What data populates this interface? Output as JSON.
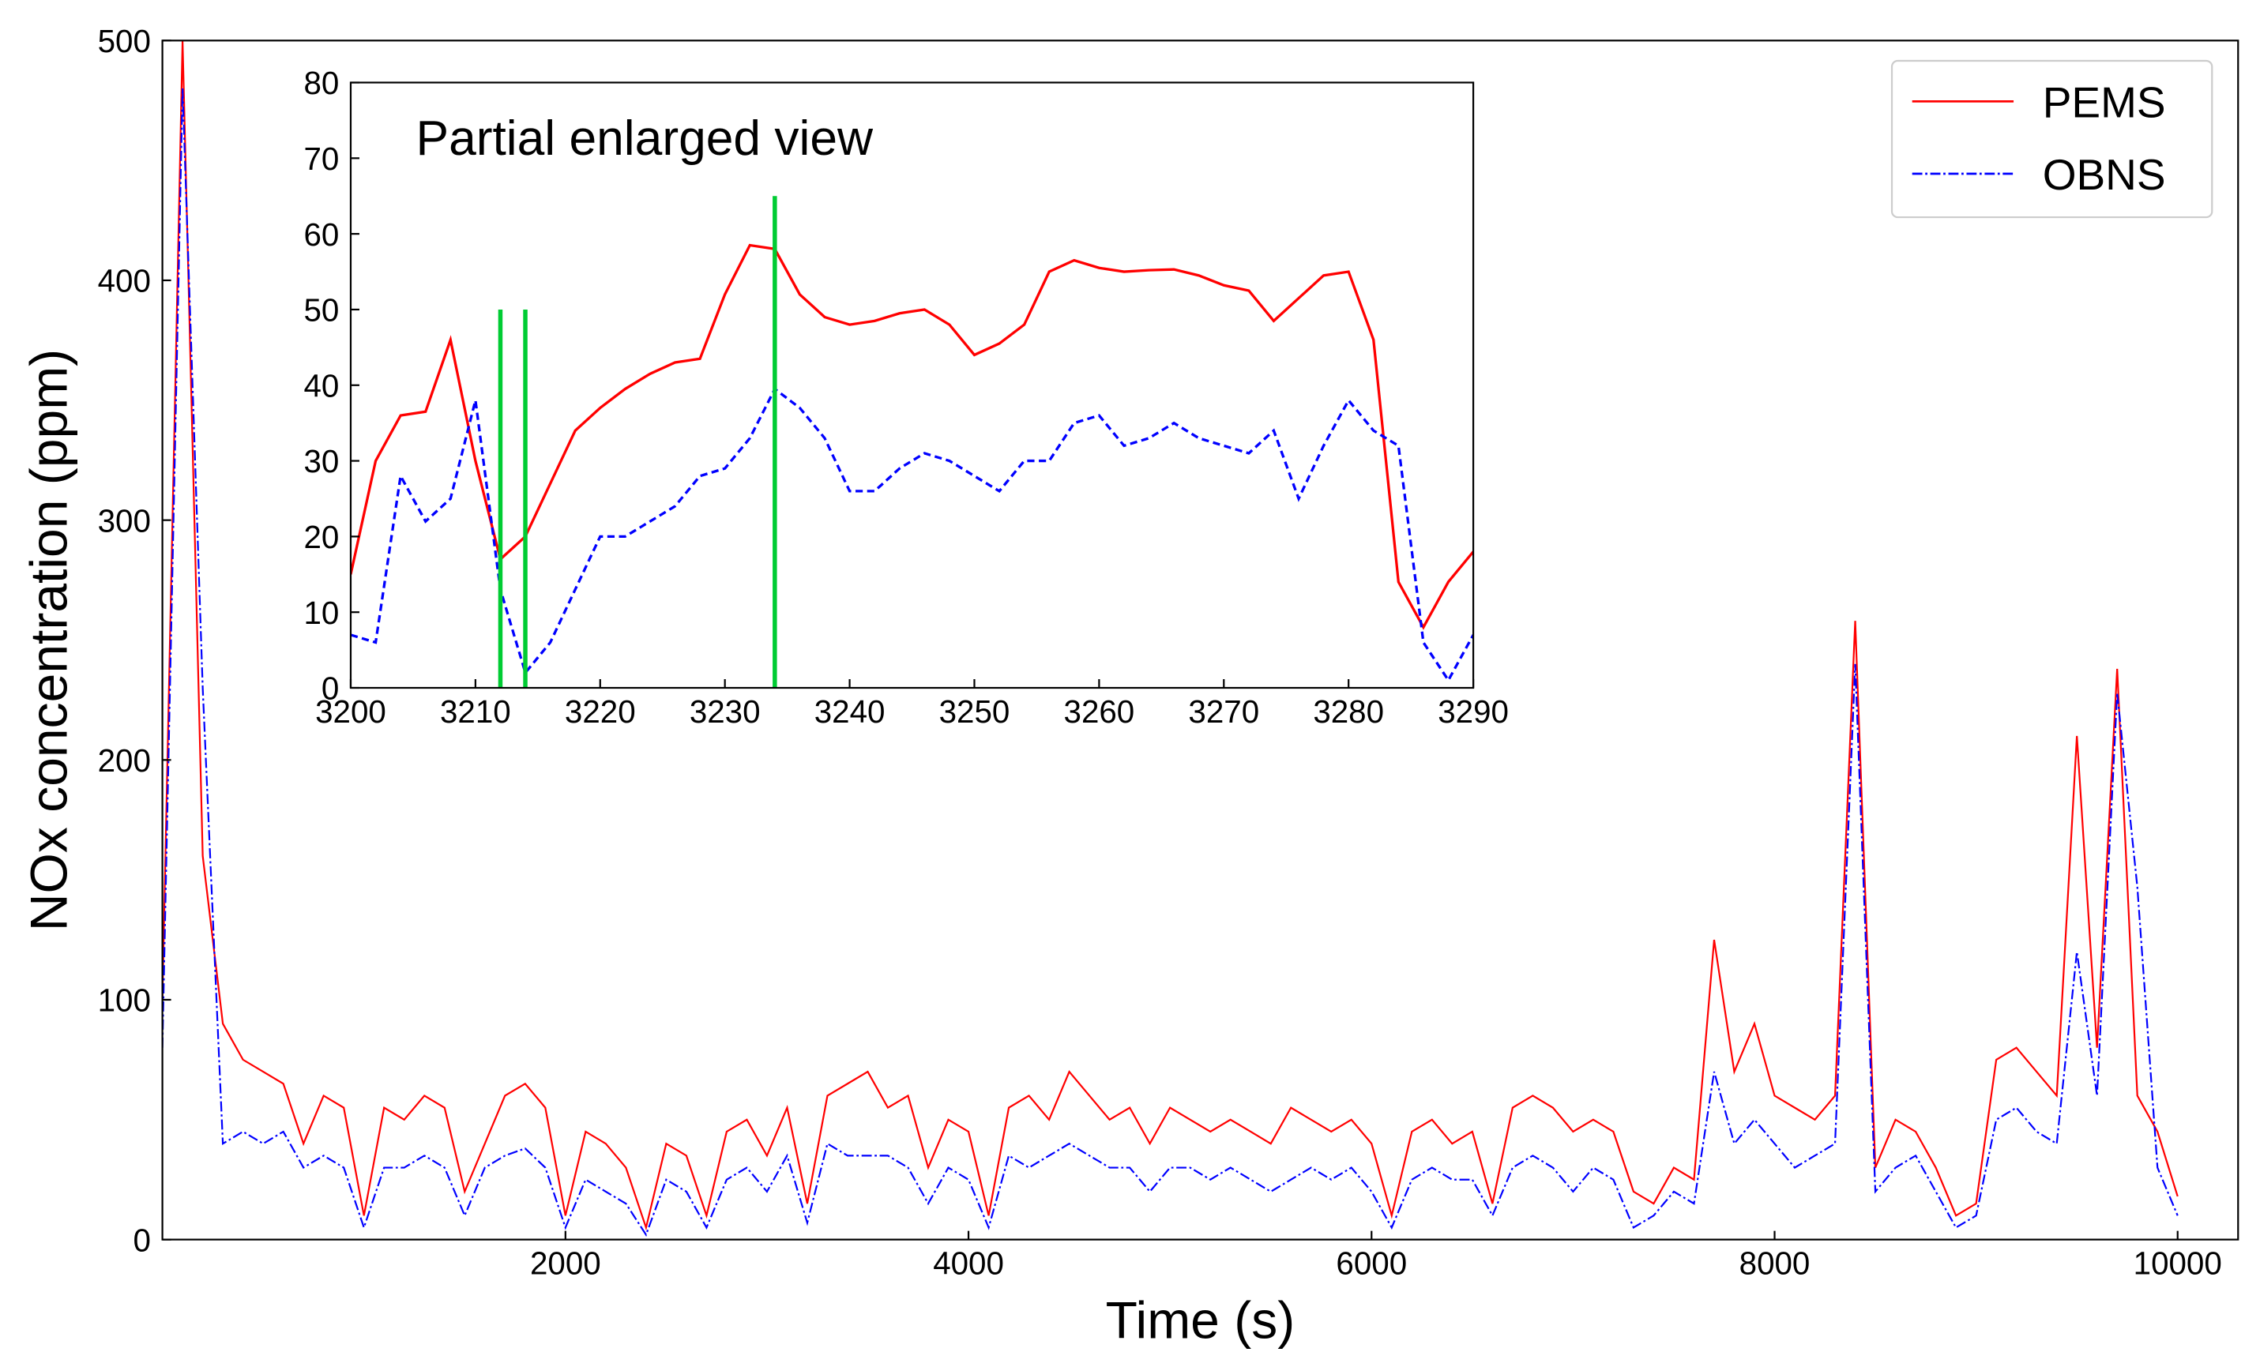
{
  "chart_data": [
    {
      "type": "line",
      "xlabel": "Time (s)",
      "ylabel": "NOx concentration (ppm)",
      "x": [
        0,
        100,
        200,
        300,
        400,
        500,
        600,
        700,
        800,
        900,
        1000,
        1100,
        1200,
        1300,
        1400,
        1500,
        1600,
        1700,
        1800,
        1900,
        2000,
        2100,
        2200,
        2300,
        2400,
        2500,
        2600,
        2700,
        2800,
        2900,
        3000,
        3100,
        3200,
        3300,
        3400,
        3500,
        3600,
        3700,
        3800,
        3900,
        4000,
        4100,
        4200,
        4300,
        4400,
        4500,
        4600,
        4700,
        4800,
        4900,
        5000,
        5100,
        5200,
        5300,
        5400,
        5500,
        5600,
        5700,
        5800,
        5900,
        6000,
        6100,
        6200,
        6300,
        6400,
        6500,
        6600,
        6700,
        6800,
        6900,
        7000,
        7100,
        7200,
        7300,
        7400,
        7500,
        7600,
        7700,
        7800,
        7900,
        8000,
        8100,
        8200,
        8300,
        8400,
        8500,
        8600,
        8700,
        8800,
        8900,
        9000,
        9100,
        9200,
        9300,
        9400,
        9500,
        9600,
        9700,
        9800,
        9900,
        10000
      ],
      "series": [
        {
          "name": "PEMS",
          "color": "#ff0000",
          "linestyle": "solid",
          "values": [
            100,
            500,
            160,
            90,
            75,
            70,
            65,
            40,
            60,
            55,
            10,
            55,
            50,
            60,
            55,
            20,
            40,
            60,
            65,
            55,
            10,
            45,
            40,
            30,
            5,
            40,
            35,
            10,
            45,
            50,
            35,
            55,
            15,
            60,
            65,
            70,
            55,
            60,
            30,
            50,
            45,
            10,
            55,
            60,
            50,
            70,
            60,
            50,
            55,
            40,
            55,
            50,
            45,
            50,
            45,
            40,
            55,
            50,
            45,
            50,
            40,
            10,
            45,
            50,
            40,
            45,
            15,
            55,
            60,
            55,
            45,
            50,
            45,
            20,
            15,
            30,
            25,
            125,
            70,
            90,
            60,
            55,
            50,
            60,
            258,
            30,
            50,
            45,
            30,
            10,
            15,
            75,
            80,
            70,
            60,
            210,
            80,
            238,
            60,
            45,
            18
          ]
        },
        {
          "name": "OBNS",
          "color": "#0000ff",
          "linestyle": "dashdot",
          "values": [
            80,
            480,
            230,
            40,
            45,
            40,
            45,
            30,
            35,
            30,
            5,
            30,
            30,
            35,
            30,
            10,
            30,
            35,
            38,
            30,
            5,
            25,
            20,
            15,
            2,
            25,
            20,
            5,
            25,
            30,
            20,
            35,
            7,
            40,
            35,
            35,
            35,
            30,
            15,
            30,
            25,
            5,
            35,
            30,
            35,
            40,
            35,
            30,
            30,
            20,
            30,
            30,
            25,
            30,
            25,
            20,
            25,
            30,
            25,
            30,
            20,
            5,
            25,
            30,
            25,
            25,
            10,
            30,
            35,
            30,
            20,
            30,
            25,
            5,
            10,
            20,
            15,
            70,
            40,
            50,
            40,
            30,
            35,
            40,
            240,
            20,
            30,
            35,
            20,
            5,
            10,
            50,
            55,
            45,
            40,
            120,
            60,
            228,
            147,
            30,
            10
          ]
        }
      ],
      "xlim": [
        0,
        10300
      ],
      "xticks": [
        2000,
        4000,
        6000,
        8000,
        10000
      ],
      "ylim": [
        0,
        500
      ],
      "yticks": [
        0,
        100,
        200,
        300,
        400,
        500
      ],
      "legend": "upper right"
    },
    {
      "type": "line",
      "title": "Partial enlarged view",
      "x": [
        3200,
        3202,
        3204,
        3206,
        3208,
        3210,
        3212,
        3214,
        3216,
        3218,
        3220,
        3222,
        3224,
        3226,
        3228,
        3230,
        3232,
        3234,
        3236,
        3238,
        3240,
        3242,
        3244,
        3246,
        3248,
        3250,
        3252,
        3254,
        3256,
        3258,
        3260,
        3262,
        3264,
        3266,
        3268,
        3270,
        3272,
        3274,
        3276,
        3278,
        3280,
        3282,
        3284,
        3286,
        3288,
        3290
      ],
      "series": [
        {
          "name": "PEMS",
          "color": "#ff0000",
          "linestyle": "solid",
          "values": [
            15,
            30,
            36,
            36.5,
            46,
            30,
            17,
            20,
            27,
            34,
            37,
            39.5,
            41.5,
            43,
            43.5,
            52,
            58.5,
            58,
            52,
            49,
            48,
            48.5,
            49.5,
            50,
            48,
            44,
            45.5,
            48,
            55,
            56.5,
            55.5,
            55,
            55.2,
            55.3,
            54.5,
            53.2,
            52.5,
            48.5,
            51.5,
            54.5,
            55,
            46,
            14,
            8,
            14,
            18
          ]
        },
        {
          "name": "OBNS",
          "color": "#0000ff",
          "linestyle": "dashed",
          "values": [
            7,
            6,
            28,
            22,
            25,
            38,
            13,
            2,
            6,
            13,
            20,
            20,
            22,
            24,
            28,
            29,
            33,
            39.5,
            37,
            33,
            26,
            26,
            29,
            31,
            30,
            28,
            26,
            30,
            30,
            35,
            36,
            32,
            33,
            35,
            33,
            32,
            31,
            34,
            25,
            32,
            38,
            34,
            32,
            6,
            1,
            7
          ]
        }
      ],
      "vlines": [
        {
          "x": 3212,
          "y": 50,
          "color": "#00cc33"
        },
        {
          "x": 3214,
          "y": 50,
          "color": "#00cc33"
        },
        {
          "x": 3234,
          "y": 65,
          "color": "#00cc33"
        }
      ],
      "xlim": [
        3200,
        3290
      ],
      "xticks": [
        3200,
        3210,
        3220,
        3230,
        3240,
        3250,
        3260,
        3270,
        3280,
        3290
      ],
      "ylim": [
        0,
        80
      ],
      "yticks": [
        0,
        10,
        20,
        30,
        40,
        50,
        60,
        70,
        80
      ]
    }
  ]
}
